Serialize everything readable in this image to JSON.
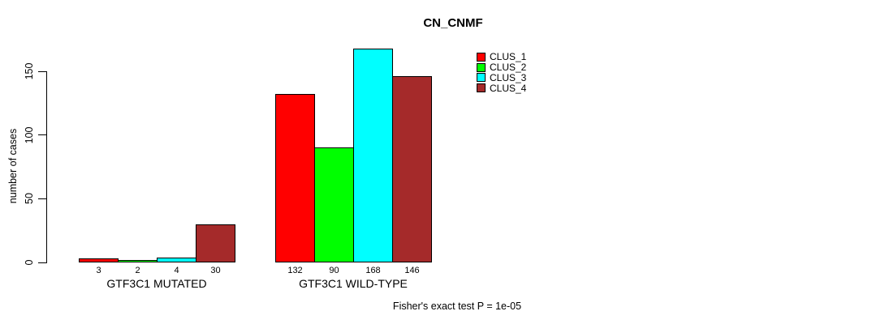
{
  "chart_data": {
    "type": "bar",
    "title": "CN_CNMF",
    "ylabel": "number of cases",
    "xlabel": "",
    "yticks": [
      0,
      50,
      100,
      150
    ],
    "ylim": [
      0,
      175
    ],
    "grid": false,
    "legend_position": "top-right",
    "bar_value_labels": true,
    "categories": [
      "GTF3C1 MUTATED",
      "GTF3C1 WILD-TYPE"
    ],
    "series": [
      {
        "name": "CLUS_1",
        "color": "#ff0000",
        "values": [
          3,
          132
        ]
      },
      {
        "name": "CLUS_2",
        "color": "#00ff00",
        "values": [
          2,
          90
        ]
      },
      {
        "name": "CLUS_3",
        "color": "#00ffff",
        "values": [
          4,
          168
        ]
      },
      {
        "name": "CLUS_4",
        "color": "#a52a2a",
        "values": [
          30,
          146
        ]
      }
    ],
    "annotation": "Fisher's exact test P = 1e-05"
  },
  "footer": {
    "caption": "Fisher's exact test P = 1e-05"
  }
}
